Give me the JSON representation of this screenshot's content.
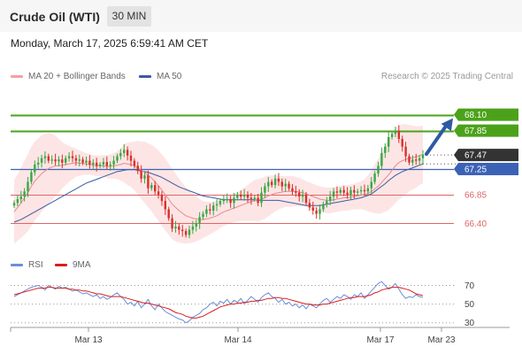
{
  "header": {
    "title": "Crude Oil (WTI)",
    "timeframe": "30 MIN"
  },
  "datetime": "Monday, March 17, 2025 6:59:41 AM CET",
  "legend": {
    "ma20_label": "MA 20 + Bollinger Bands",
    "ma50_label": "MA 50",
    "rsi_label": "RSI",
    "rsi_ma_label": "9MA",
    "credit": "Research © 2025 Trading Central"
  },
  "colors": {
    "up": "#38a844",
    "down": "#d9302b",
    "band_fill": "#fde0e0",
    "ma20": "#e88a8a",
    "ma50": "#3b5ba5",
    "resistance": "#4ba21a",
    "support_line": "#e06565",
    "pivot_line": "#3c62b6",
    "current_tag": "#333333",
    "arrow": "#2e5aa3"
  },
  "chart_data": [
    {
      "type": "candlestick",
      "y_range": [
        65.88,
        68.62
      ],
      "x_labels": [
        "Mar 13",
        "Mar 14",
        "Mar 17",
        "Mar 23"
      ],
      "price_levels": [
        {
          "value": 68.1,
          "label": "68.10",
          "kind": "resistance"
        },
        {
          "value": 67.85,
          "label": "67.85",
          "kind": "resistance"
        },
        {
          "value": 67.47,
          "label": "67.47",
          "kind": "current"
        },
        {
          "value": 67.25,
          "label": "67.25",
          "kind": "pivot"
        },
        {
          "value": 66.85,
          "label": "66.85",
          "kind": "support"
        },
        {
          "value": 66.4,
          "label": "66.40",
          "kind": "support"
        }
      ],
      "forecast": {
        "from": 67.47,
        "to": 68.1,
        "direction": "up"
      },
      "close_series": [
        66.72,
        66.78,
        66.82,
        66.9,
        67.05,
        67.2,
        67.32,
        67.35,
        67.42,
        67.45,
        67.38,
        67.4,
        67.37,
        67.4,
        67.35,
        67.42,
        67.45,
        67.42,
        67.38,
        67.4,
        67.35,
        67.38,
        67.32,
        67.35,
        67.3,
        67.32,
        67.36,
        67.3,
        67.32,
        67.38,
        67.45,
        67.5,
        67.55,
        67.46,
        67.38,
        67.3,
        67.22,
        67.1,
        67.15,
        66.95,
        67.0,
        66.9,
        66.85,
        66.75,
        66.62,
        66.48,
        66.32,
        66.35,
        66.3,
        66.28,
        66.22,
        66.3,
        66.35,
        66.4,
        66.5,
        66.55,
        66.62,
        66.6,
        66.68,
        66.7,
        66.75,
        66.78,
        66.78,
        66.72,
        66.8,
        66.85,
        66.82,
        66.85,
        66.8,
        66.78,
        66.8,
        66.72,
        66.88,
        66.98,
        67.05,
        67.0,
        67.1,
        67.05,
        66.98,
        67.02,
        66.95,
        66.9,
        66.88,
        66.82,
        66.85,
        66.72,
        66.65,
        66.6,
        66.55,
        66.62,
        66.7,
        66.75,
        66.82,
        66.9,
        66.88,
        66.92,
        66.88,
        66.85,
        66.92,
        66.88,
        66.9,
        66.92,
        66.9,
        66.95,
        67.05,
        67.18,
        67.3,
        67.5,
        67.6,
        67.75,
        67.8,
        67.85,
        67.72,
        67.6,
        67.45,
        67.35,
        67.4,
        67.38,
        67.42,
        67.47
      ],
      "ma20": [
        66.58,
        66.65,
        66.72,
        66.8,
        66.88,
        66.98,
        67.06,
        67.12,
        67.18,
        67.22,
        67.26,
        67.28,
        67.3,
        67.3,
        67.31,
        67.32,
        67.33,
        67.34,
        67.35,
        67.34,
        67.34,
        67.33,
        67.32,
        67.31,
        67.3,
        67.3,
        67.3,
        67.29,
        67.29,
        67.3,
        67.31,
        67.32,
        67.34,
        67.33,
        67.32,
        67.3,
        67.27,
        67.23,
        67.2,
        67.15,
        67.11,
        67.05,
        66.99,
        66.92,
        66.85,
        66.78,
        66.7,
        66.65,
        66.6,
        66.56,
        66.52,
        66.5,
        66.48,
        66.47,
        66.46,
        66.46,
        66.47,
        66.48,
        66.5,
        66.52,
        66.55,
        66.58,
        66.6,
        66.62,
        66.64,
        66.66,
        66.68,
        66.7,
        66.72,
        66.74,
        66.76,
        66.76,
        66.78,
        66.8,
        66.83,
        66.85,
        66.87,
        66.88,
        66.89,
        66.9,
        66.9,
        66.9,
        66.9,
        66.89,
        66.88,
        66.86,
        66.84,
        66.82,
        66.8,
        66.78,
        66.77,
        66.76,
        66.76,
        66.77,
        66.78,
        66.79,
        66.8,
        66.8,
        66.81,
        66.82,
        66.83,
        66.84,
        66.85,
        66.87,
        66.9,
        66.94,
        66.98,
        67.04,
        67.1,
        67.16,
        67.23,
        67.3,
        67.35,
        67.38,
        67.4,
        67.42,
        67.43,
        67.44,
        67.46,
        67.48
      ],
      "ma50": [
        66.42,
        66.44,
        66.46,
        66.49,
        66.52,
        66.55,
        66.58,
        66.61,
        66.64,
        66.67,
        66.7,
        66.73,
        66.76,
        66.79,
        66.82,
        66.85,
        66.88,
        66.91,
        66.94,
        66.97,
        67.0,
        67.03,
        67.05,
        67.07,
        67.09,
        67.11,
        67.13,
        67.15,
        67.17,
        67.19,
        67.21,
        67.22,
        67.23,
        67.24,
        67.24,
        67.24,
        67.23,
        67.22,
        67.21,
        67.2,
        67.18,
        67.16,
        67.14,
        67.12,
        67.09,
        67.06,
        67.03,
        67.0,
        66.97,
        66.95,
        66.93,
        66.91,
        66.89,
        66.87,
        66.85,
        66.83,
        66.82,
        66.81,
        66.8,
        66.79,
        66.78,
        66.77,
        66.77,
        66.77,
        66.77,
        66.77,
        66.77,
        66.77,
        66.77,
        66.77,
        66.77,
        66.76,
        66.76,
        66.76,
        66.76,
        66.76,
        66.76,
        66.76,
        66.75,
        66.74,
        66.73,
        66.72,
        66.71,
        66.7,
        66.69,
        66.68,
        66.68,
        66.68,
        66.68,
        66.68,
        66.69,
        66.7,
        66.71,
        66.72,
        66.73,
        66.74,
        66.75,
        66.76,
        66.77,
        66.78,
        66.79,
        66.8,
        66.82,
        66.84,
        66.86,
        66.9,
        66.94,
        66.98,
        67.02,
        67.07,
        67.11,
        67.15,
        67.18,
        67.21,
        67.23,
        67.25,
        67.27,
        67.29,
        67.31,
        67.33
      ],
      "band_width": [
        0.5,
        0.52,
        0.55,
        0.58,
        0.6,
        0.62,
        0.62,
        0.61,
        0.6,
        0.58,
        0.55,
        0.52,
        0.48,
        0.42,
        0.36,
        0.32,
        0.28,
        0.25,
        0.22,
        0.2,
        0.18,
        0.17,
        0.16,
        0.16,
        0.16,
        0.16,
        0.17,
        0.18,
        0.19,
        0.2,
        0.22,
        0.25,
        0.3,
        0.33,
        0.35,
        0.38,
        0.42,
        0.45,
        0.48,
        0.5,
        0.52,
        0.54,
        0.55,
        0.56,
        0.56,
        0.56,
        0.55,
        0.53,
        0.5,
        0.47,
        0.44,
        0.41,
        0.38,
        0.35,
        0.32,
        0.29,
        0.27,
        0.25,
        0.24,
        0.23,
        0.22,
        0.22,
        0.22,
        0.22,
        0.22,
        0.23,
        0.24,
        0.26,
        0.28,
        0.3,
        0.32,
        0.33,
        0.33,
        0.33,
        0.32,
        0.3,
        0.28,
        0.26,
        0.25,
        0.24,
        0.24,
        0.24,
        0.23,
        0.22,
        0.21,
        0.2,
        0.2,
        0.2,
        0.2,
        0.2,
        0.2,
        0.2,
        0.2,
        0.2,
        0.2,
        0.2,
        0.2,
        0.2,
        0.2,
        0.2,
        0.21,
        0.22,
        0.24,
        0.28,
        0.33,
        0.38,
        0.43,
        0.48,
        0.52,
        0.55,
        0.57,
        0.58,
        0.58,
        0.57,
        0.55,
        0.52,
        0.5,
        0.48,
        0.46,
        0.45
      ]
    },
    {
      "type": "line",
      "y_range": [
        25,
        78
      ],
      "levels": [
        70,
        50,
        30
      ],
      "series": [
        {
          "name": "RSI",
          "values": [
            58,
            60,
            62,
            64,
            66,
            68,
            69,
            70,
            68,
            65,
            70,
            68,
            66,
            69,
            67,
            68,
            66,
            64,
            65,
            63,
            61,
            62,
            60,
            58,
            60,
            56,
            58,
            55,
            57,
            60,
            62,
            58,
            55,
            50,
            52,
            48,
            53,
            46,
            50,
            55,
            48,
            44,
            50,
            46,
            42,
            40,
            38,
            36,
            34,
            33,
            30,
            32,
            36,
            38,
            40,
            44,
            46,
            50,
            52,
            48,
            53,
            51,
            55,
            50,
            54,
            52,
            56,
            50,
            54,
            58,
            55,
            52,
            57,
            60,
            62,
            58,
            56,
            52,
            55,
            50,
            52,
            48,
            50,
            46,
            49,
            45,
            50,
            48,
            46,
            50,
            54,
            56,
            52,
            55,
            58,
            56,
            60,
            58,
            55,
            60,
            58,
            62,
            56,
            60,
            64,
            68,
            72,
            74,
            70,
            66,
            68,
            72,
            66,
            60,
            56,
            58,
            57,
            60,
            58,
            57
          ]
        },
        {
          "name": "9MA",
          "values": [
            60,
            61,
            62,
            63,
            64,
            65,
            66,
            67,
            67,
            67,
            68,
            68,
            67,
            67,
            67,
            67,
            66,
            66,
            65,
            65,
            64,
            64,
            63,
            62,
            61,
            61,
            60,
            59,
            58,
            58,
            58,
            58,
            57,
            56,
            55,
            54,
            53,
            52,
            51,
            51,
            50,
            49,
            48,
            47,
            46,
            45,
            43,
            41,
            40,
            39,
            37,
            36,
            35,
            35,
            36,
            37,
            39,
            41,
            43,
            45,
            47,
            48,
            49,
            50,
            50,
            51,
            51,
            52,
            52,
            53,
            53,
            54,
            54,
            55,
            56,
            56,
            57,
            57,
            56,
            56,
            55,
            54,
            53,
            52,
            51,
            50,
            50,
            49,
            49,
            49,
            50,
            50,
            51,
            52,
            53,
            54,
            55,
            56,
            57,
            57,
            58,
            58,
            58,
            59,
            60,
            62,
            63,
            65,
            66,
            67,
            68,
            68,
            68,
            67,
            66,
            65,
            63,
            61,
            60,
            59
          ]
        }
      ]
    }
  ]
}
